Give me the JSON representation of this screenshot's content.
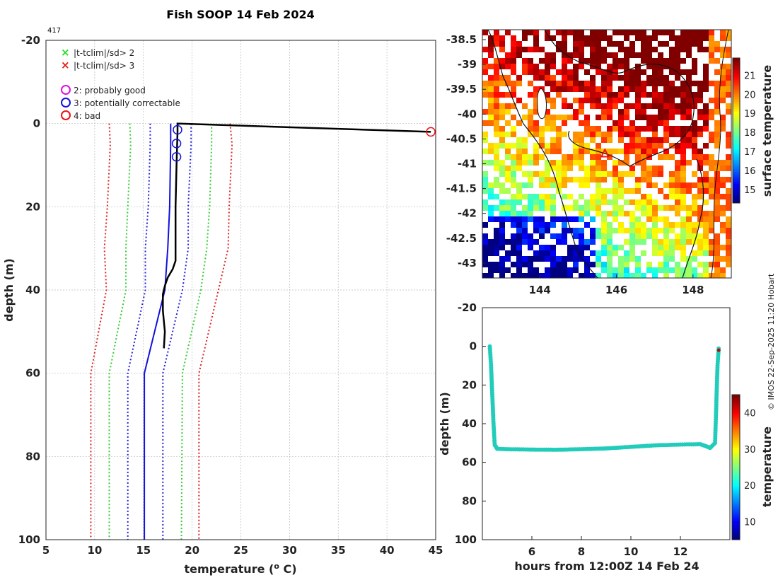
{
  "chart_data": [
    {
      "id": "profile",
      "type": "line",
      "title": "Fish SOOP 14 Feb 2024",
      "profile_id": "417",
      "xlabel": "temperature (",
      "xlabel_sup": "o",
      "xlabel_tail": " C)",
      "ylabel": "depth (m)",
      "xlim": [
        5,
        45
      ],
      "ylim": [
        -20,
        100
      ],
      "xticks": [
        5,
        10,
        15,
        20,
        25,
        30,
        35,
        40,
        45
      ],
      "yticks": [
        -20,
        0,
        20,
        40,
        60,
        80,
        100
      ],
      "legend": {
        "markers": [
          {
            "symbol": "×",
            "color": "#22dd22",
            "label": "|t-tclim|/sd> 2"
          },
          {
            "symbol": "×",
            "color": "#ee1111",
            "label": "|t-tclim|/sd> 3"
          }
        ],
        "flags": [
          {
            "symbol": "circle",
            "color": "#dd11dd",
            "label": "2: probably good"
          },
          {
            "symbol": "circle",
            "color": "#1111dd",
            "label": "3: potentially correctable"
          },
          {
            "symbol": "circle",
            "color": "#ee1111",
            "label": "4: bad"
          }
        ]
      },
      "series": [
        {
          "name": "clim -3sd",
          "color": "#dd2222",
          "style": "dotted",
          "points": [
            [
              11.5,
              0
            ],
            [
              11.6,
              5
            ],
            [
              11.3,
              20
            ],
            [
              11.0,
              30
            ],
            [
              11.2,
              40
            ],
            [
              9.6,
              60
            ],
            [
              9.6,
              100
            ]
          ]
        },
        {
          "name": "clim -2sd",
          "color": "#33cc33",
          "style": "dotted",
          "points": [
            [
              13.6,
              0
            ],
            [
              13.7,
              5
            ],
            [
              13.4,
              20
            ],
            [
              13.2,
              30
            ],
            [
              13.2,
              40
            ],
            [
              11.5,
              60
            ],
            [
              11.5,
              100
            ]
          ]
        },
        {
          "name": "clim -1sd",
          "color": "#2222dd",
          "style": "dotted",
          "points": [
            [
              15.7,
              0
            ],
            [
              15.7,
              5
            ],
            [
              15.5,
              20
            ],
            [
              15.2,
              30
            ],
            [
              15.2,
              40
            ],
            [
              13.4,
              60
            ],
            [
              13.4,
              100
            ]
          ]
        },
        {
          "name": "clim mean",
          "color": "#1111dd",
          "style": "solid",
          "points": [
            [
              17.8,
              0
            ],
            [
              17.8,
              5
            ],
            [
              17.7,
              20
            ],
            [
              17.5,
              30
            ],
            [
              17.2,
              40
            ],
            [
              15.1,
              60
            ],
            [
              15.1,
              100
            ]
          ]
        },
        {
          "name": "clim +1sd",
          "color": "#2222dd",
          "style": "dotted",
          "points": [
            [
              19.9,
              0
            ],
            [
              19.9,
              5
            ],
            [
              19.6,
              20
            ],
            [
              19.6,
              30
            ],
            [
              19.0,
              40
            ],
            [
              17.0,
              60
            ],
            [
              17.0,
              100
            ]
          ]
        },
        {
          "name": "clim +2sd",
          "color": "#33cc33",
          "style": "dotted",
          "points": [
            [
              22.0,
              0
            ],
            [
              22.0,
              5
            ],
            [
              21.8,
              20
            ],
            [
              21.5,
              30
            ],
            [
              20.9,
              40
            ],
            [
              19.0,
              60
            ],
            [
              18.9,
              100
            ]
          ]
        },
        {
          "name": "clim +3sd",
          "color": "#dd2222",
          "style": "dotted",
          "points": [
            [
              23.9,
              0
            ],
            [
              24.1,
              5
            ],
            [
              23.8,
              20
            ],
            [
              23.7,
              30
            ],
            [
              22.7,
              40
            ],
            [
              20.7,
              60
            ],
            [
              20.7,
              100
            ]
          ]
        },
        {
          "name": "observed",
          "color": "#000000",
          "style": "solid",
          "points": [
            [
              44.5,
              2
            ],
            [
              18.5,
              0
            ],
            [
              18.5,
              2
            ],
            [
              18.4,
              10
            ],
            [
              18.3,
              20
            ],
            [
              18.3,
              28
            ],
            [
              18.3,
              33
            ],
            [
              18.0,
              35
            ],
            [
              17.5,
              37
            ],
            [
              17.2,
              39
            ],
            [
              17.0,
              41
            ],
            [
              17.0,
              45
            ],
            [
              17.2,
              50
            ],
            [
              17.1,
              54
            ]
          ]
        }
      ],
      "flag_markers": [
        {
          "x": 18.5,
          "y": 1.5,
          "flag": 3
        },
        {
          "x": 18.4,
          "y": 4.8,
          "flag": 3
        },
        {
          "x": 18.4,
          "y": 8.0,
          "flag": 3
        },
        {
          "x": 44.5,
          "y": 2.0,
          "flag": 4
        }
      ]
    },
    {
      "id": "map",
      "type": "heatmap",
      "colorbar_label": "surface temperature",
      "colorbar_ticks": [
        15,
        16,
        17,
        18,
        19,
        20,
        21
      ],
      "colorbar_range": [
        14.3,
        21.9
      ],
      "xlim": [
        142.5,
        149.0
      ],
      "ylim": [
        -43.3,
        -38.3
      ],
      "xticks": [
        144,
        146,
        148
      ],
      "yticks": [
        -38.5,
        -39,
        -39.5,
        -40,
        -40.5,
        -41,
        -41.5,
        -42,
        -42.5,
        -43
      ],
      "marker": {
        "lon": 145.7,
        "lat": -40.8,
        "symbol": "triangle",
        "color": "#ee1111"
      }
    },
    {
      "id": "timeseries",
      "type": "scatter",
      "xlabel": "hours from 12:00Z 14 Feb 24",
      "ylabel": "depth (m)",
      "xlim": [
        4.0,
        14.0
      ],
      "ylim": [
        -20,
        100
      ],
      "xticks": [
        6,
        8,
        10,
        12
      ],
      "yticks": [
        -20,
        0,
        20,
        40,
        60,
        80,
        100
      ],
      "colorbar_label": "temperature",
      "colorbar_ticks": [
        10,
        20,
        30,
        40
      ],
      "colorbar_range": [
        5,
        45
      ],
      "color": "#22ccbb",
      "points": [
        [
          4.3,
          0
        ],
        [
          4.35,
          10
        ],
        [
          4.4,
          25
        ],
        [
          4.45,
          40
        ],
        [
          4.5,
          51
        ],
        [
          4.6,
          53
        ],
        [
          5,
          53.2
        ],
        [
          6,
          53.4
        ],
        [
          7,
          53.5
        ],
        [
          8,
          53.2
        ],
        [
          9,
          52.8
        ],
        [
          10,
          52.0
        ],
        [
          11,
          51.2
        ],
        [
          12,
          50.8
        ],
        [
          12.8,
          50.6
        ],
        [
          13,
          51.5
        ],
        [
          13.2,
          52.5
        ],
        [
          13.4,
          50
        ],
        [
          13.45,
          30
        ],
        [
          13.5,
          10
        ],
        [
          13.55,
          0
        ]
      ],
      "end_marker": {
        "x": 13.55,
        "y": 2,
        "color": "#aa1111"
      }
    }
  ],
  "credit": "© IMOS 22-Sep-2025 11:20 Hobart"
}
